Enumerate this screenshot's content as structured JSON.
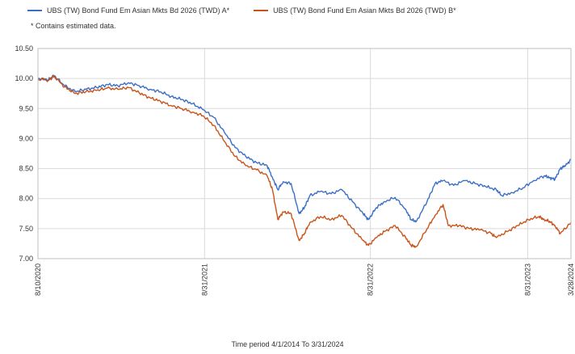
{
  "legend": {
    "series_a": "UBS (TW) Bond Fund Em Asian Mkts Bd 2026 (TWD) A*",
    "series_b": "UBS (TW) Bond Fund Em Asian Mkts Bd 2026 (TWD) B*",
    "note": "*  Contains estimated data."
  },
  "footer": {
    "period": "Time period 4/1/2014 To 3/31/2024"
  },
  "colors": {
    "series_a": "#3b6fc6",
    "series_b": "#c8541a",
    "grid": "#d9d9d9"
  },
  "chart_data": {
    "type": "line",
    "title": "",
    "xlabel": "",
    "ylabel": "",
    "ylim": [
      7.0,
      10.5
    ],
    "y_ticks": [
      "10.50",
      "10.00",
      "9.50",
      "9.00",
      "8.50",
      "8.00",
      "7.50",
      "7.00"
    ],
    "x_ticks": [
      "8/10/2020",
      "8/31/2021",
      "8/31/2022",
      "8/31/2023",
      "3/28/2024"
    ],
    "x_tick_fractions": [
      0,
      0.3125,
      0.6238,
      0.9188,
      1
    ],
    "grid": true,
    "legend_position": "top-left",
    "series": [
      {
        "name": "UBS (TW) Bond Fund Em Asian Mkts Bd 2026 (TWD) A*",
        "color": "#3b6fc6",
        "points": [
          [
            0,
            10.0
          ],
          [
            0.02,
            9.98
          ],
          [
            0.03,
            10.05
          ],
          [
            0.05,
            9.88
          ],
          [
            0.07,
            9.78
          ],
          [
            0.09,
            9.82
          ],
          [
            0.11,
            9.85
          ],
          [
            0.13,
            9.9
          ],
          [
            0.15,
            9.88
          ],
          [
            0.17,
            9.93
          ],
          [
            0.19,
            9.88
          ],
          [
            0.21,
            9.82
          ],
          [
            0.23,
            9.78
          ],
          [
            0.25,
            9.7
          ],
          [
            0.27,
            9.65
          ],
          [
            0.29,
            9.58
          ],
          [
            0.31,
            9.48
          ],
          [
            0.33,
            9.35
          ],
          [
            0.35,
            9.1
          ],
          [
            0.37,
            8.85
          ],
          [
            0.39,
            8.7
          ],
          [
            0.41,
            8.6
          ],
          [
            0.43,
            8.55
          ],
          [
            0.44,
            8.35
          ],
          [
            0.45,
            8.15
          ],
          [
            0.46,
            8.28
          ],
          [
            0.475,
            8.25
          ],
          [
            0.49,
            7.75
          ],
          [
            0.5,
            7.85
          ],
          [
            0.51,
            8.05
          ],
          [
            0.53,
            8.12
          ],
          [
            0.55,
            8.08
          ],
          [
            0.57,
            8.15
          ],
          [
            0.59,
            7.95
          ],
          [
            0.61,
            7.75
          ],
          [
            0.62,
            7.65
          ],
          [
            0.635,
            7.85
          ],
          [
            0.65,
            7.95
          ],
          [
            0.67,
            8.02
          ],
          [
            0.69,
            7.82
          ],
          [
            0.7,
            7.65
          ],
          [
            0.71,
            7.62
          ],
          [
            0.73,
            7.95
          ],
          [
            0.745,
            8.25
          ],
          [
            0.76,
            8.3
          ],
          [
            0.78,
            8.22
          ],
          [
            0.8,
            8.3
          ],
          [
            0.82,
            8.25
          ],
          [
            0.84,
            8.2
          ],
          [
            0.86,
            8.15
          ],
          [
            0.87,
            8.05
          ],
          [
            0.89,
            8.1
          ],
          [
            0.91,
            8.18
          ],
          [
            0.93,
            8.3
          ],
          [
            0.95,
            8.38
          ],
          [
            0.96,
            8.35
          ],
          [
            0.97,
            8.32
          ],
          [
            0.98,
            8.5
          ],
          [
            0.99,
            8.55
          ],
          [
            1.0,
            8.65
          ]
        ]
      },
      {
        "name": "UBS (TW) Bond Fund Em Asian Mkts Bd 2026 (TWD) B*",
        "color": "#c8541a",
        "points": [
          [
            0,
            10.0
          ],
          [
            0.02,
            9.97
          ],
          [
            0.03,
            10.04
          ],
          [
            0.05,
            9.86
          ],
          [
            0.07,
            9.75
          ],
          [
            0.09,
            9.78
          ],
          [
            0.11,
            9.8
          ],
          [
            0.13,
            9.84
          ],
          [
            0.15,
            9.82
          ],
          [
            0.17,
            9.85
          ],
          [
            0.19,
            9.76
          ],
          [
            0.21,
            9.68
          ],
          [
            0.23,
            9.62
          ],
          [
            0.25,
            9.55
          ],
          [
            0.27,
            9.5
          ],
          [
            0.29,
            9.44
          ],
          [
            0.31,
            9.38
          ],
          [
            0.33,
            9.22
          ],
          [
            0.35,
            8.95
          ],
          [
            0.37,
            8.7
          ],
          [
            0.39,
            8.55
          ],
          [
            0.41,
            8.48
          ],
          [
            0.43,
            8.38
          ],
          [
            0.44,
            8.15
          ],
          [
            0.45,
            7.65
          ],
          [
            0.46,
            7.78
          ],
          [
            0.475,
            7.75
          ],
          [
            0.49,
            7.3
          ],
          [
            0.5,
            7.42
          ],
          [
            0.51,
            7.6
          ],
          [
            0.53,
            7.7
          ],
          [
            0.55,
            7.65
          ],
          [
            0.57,
            7.72
          ],
          [
            0.59,
            7.5
          ],
          [
            0.61,
            7.3
          ],
          [
            0.62,
            7.22
          ],
          [
            0.635,
            7.35
          ],
          [
            0.65,
            7.45
          ],
          [
            0.67,
            7.55
          ],
          [
            0.69,
            7.35
          ],
          [
            0.7,
            7.22
          ],
          [
            0.71,
            7.2
          ],
          [
            0.73,
            7.5
          ],
          [
            0.745,
            7.72
          ],
          [
            0.76,
            7.9
          ],
          [
            0.77,
            7.55
          ],
          [
            0.79,
            7.55
          ],
          [
            0.81,
            7.5
          ],
          [
            0.83,
            7.48
          ],
          [
            0.85,
            7.42
          ],
          [
            0.86,
            7.35
          ],
          [
            0.88,
            7.45
          ],
          [
            0.9,
            7.55
          ],
          [
            0.92,
            7.65
          ],
          [
            0.94,
            7.7
          ],
          [
            0.95,
            7.65
          ],
          [
            0.96,
            7.62
          ],
          [
            0.97,
            7.55
          ],
          [
            0.98,
            7.42
          ],
          [
            1.0,
            7.6
          ]
        ]
      }
    ]
  }
}
